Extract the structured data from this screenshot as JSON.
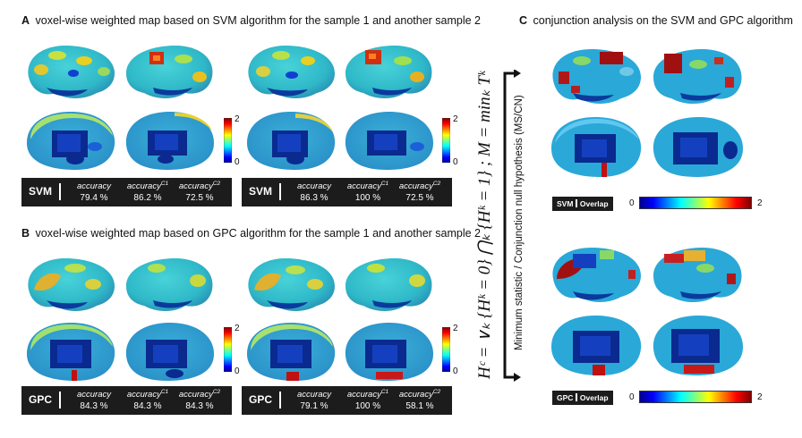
{
  "panel_a": {
    "letter": "A",
    "title": "voxel-wise weighted map based on SVM algorithm for the sample 1 and another sample 2",
    "left": {
      "algorithm": "SVM",
      "accuracy": [
        {
          "label": "accuracy",
          "sup": "",
          "value": "79.4 %"
        },
        {
          "label": "accuracy",
          "sup": "C1",
          "value": "86.2 %"
        },
        {
          "label": "accuracy",
          "sup": "C2",
          "value": "72.5 %"
        }
      ],
      "colorbar_max": "2",
      "colorbar_min": "0"
    },
    "right": {
      "algorithm": "SVM",
      "accuracy": [
        {
          "label": "accuracy",
          "sup": "",
          "value": "86.3 %"
        },
        {
          "label": "accuracy",
          "sup": "C1",
          "value": "100 %"
        },
        {
          "label": "accuracy",
          "sup": "C2",
          "value": "72.5 %"
        }
      ],
      "colorbar_max": "2",
      "colorbar_min": "0"
    }
  },
  "panel_b": {
    "letter": "B",
    "title": "voxel-wise weighted map based on GPC algorithm for the sample 1 and another sample 2",
    "left": {
      "algorithm": "GPC",
      "accuracy": [
        {
          "label": "accuracy",
          "sup": "",
          "value": "84.3 %"
        },
        {
          "label": "accuracy",
          "sup": "C1",
          "value": "84.3 %"
        },
        {
          "label": "accuracy",
          "sup": "C2",
          "value": "84.3 %"
        }
      ],
      "colorbar_max": "2",
      "colorbar_min": "0"
    },
    "right": {
      "algorithm": "GPC",
      "accuracy": [
        {
          "label": "accuracy",
          "sup": "",
          "value": "79.1 %"
        },
        {
          "label": "accuracy",
          "sup": "C1",
          "value": "100 %"
        },
        {
          "label": "accuracy",
          "sup": "C2",
          "value": "58.1 %"
        }
      ],
      "colorbar_max": "2",
      "colorbar_min": "0"
    }
  },
  "panel_c": {
    "letter": "C",
    "title": "conjunction analysis on the SVM and GPC algorithm",
    "svm_legend": {
      "algorithm": "SVM",
      "label": "Overlap",
      "min": "0",
      "max": "2"
    },
    "gpc_legend": {
      "algorithm": "GPC",
      "label": "Overlap",
      "min": "0",
      "max": "2"
    }
  },
  "formula": {
    "equation": "Hᶜ = ∨ₖ {Hᵏ = 0} ⋂ₖ {Hᵏ = 1} ; M = minₖ Tᵏ",
    "caption": "Minimum statistic / Conjunction null hypothesis (MS/CN)"
  },
  "colors": {
    "jet": [
      "#00008f",
      "#0000ff",
      "#0080ff",
      "#00ffff",
      "#80ff80",
      "#ffff00",
      "#ff8000",
      "#ff0000",
      "#800000"
    ]
  }
}
